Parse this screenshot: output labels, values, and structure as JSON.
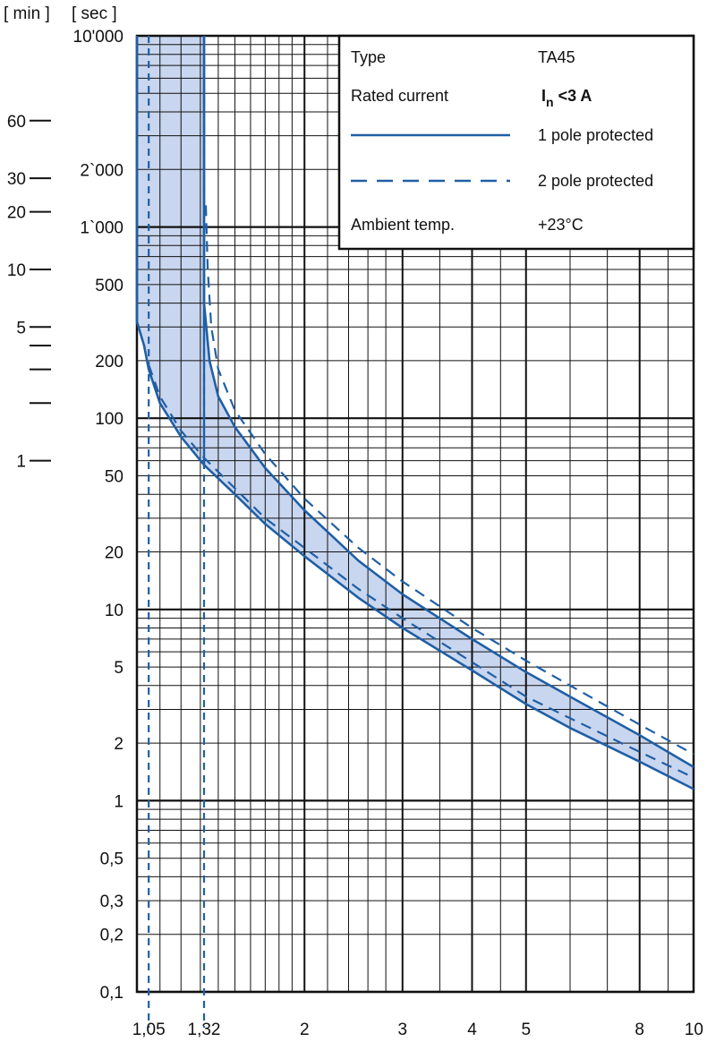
{
  "chart_data": {
    "type": "line",
    "header_labels": [
      "[ min ]",
      "[ sec ]"
    ],
    "x_axis": {
      "scale": "log",
      "range": [
        1,
        10
      ],
      "tick_labels": [
        {
          "value": 1.05,
          "label": "1,05"
        },
        {
          "value": 1.32,
          "label": "1,32"
        },
        {
          "value": 2,
          "label": "2"
        },
        {
          "value": 3,
          "label": "3"
        },
        {
          "value": 4,
          "label": "4"
        },
        {
          "value": 5,
          "label": "5"
        },
        {
          "value": 8,
          "label": "8"
        },
        {
          "value": 10,
          "label": "10"
        }
      ]
    },
    "y_axis": {
      "scale": "log",
      "unit": "sec",
      "range": [
        0.1,
        10000
      ],
      "tick_labels": [
        {
          "value": 10000,
          "label": "10'000"
        },
        {
          "value": 2000,
          "label": "2`000"
        },
        {
          "value": 1000,
          "label": "1`000"
        },
        {
          "value": 500,
          "label": "500"
        },
        {
          "value": 200,
          "label": "200"
        },
        {
          "value": 100,
          "label": "100"
        },
        {
          "value": 50,
          "label": "50"
        },
        {
          "value": 20,
          "label": "20"
        },
        {
          "value": 10,
          "label": "10"
        },
        {
          "value": 5,
          "label": "5"
        },
        {
          "value": 2,
          "label": "2"
        },
        {
          "value": 1,
          "label": "1"
        },
        {
          "value": 0.5,
          "label": "0,5"
        },
        {
          "value": 0.3,
          "label": "0,3"
        },
        {
          "value": 0.2,
          "label": "0,2"
        },
        {
          "value": 0.1,
          "label": "0,1"
        }
      ]
    },
    "minutes_axis": {
      "labeled": [
        {
          "sec": 3600,
          "label": "60"
        },
        {
          "sec": 1800,
          "label": "30"
        },
        {
          "sec": 1200,
          "label": "20"
        },
        {
          "sec": 600,
          "label": "10"
        },
        {
          "sec": 300,
          "label": "5"
        },
        {
          "sec": 60,
          "label": "1"
        }
      ],
      "unlabeled_sec": [
        240,
        180,
        120
      ]
    },
    "grid": true,
    "legend": {
      "placement": "top-right",
      "rows": [
        {
          "label": "Type",
          "value": "TA45"
        },
        {
          "label": "Rated current",
          "value_main": "I",
          "value_sub": "n",
          "value_rest": " <3 A"
        },
        {
          "style": "solid",
          "value": "1 pole protected"
        },
        {
          "style": "dashed",
          "value": "2 pole protected"
        },
        {
          "label": "Ambient temp.",
          "value": "+23°C"
        }
      ]
    },
    "colors": {
      "curve": "#1f5fa6",
      "band": "#c9d6ef",
      "grid": "#111111"
    },
    "reference_lines": [
      1.05,
      1.32
    ],
    "series": [
      {
        "style": "solid",
        "edge": "lower",
        "points": [
          [
            1.0,
            10000
          ],
          [
            1.0,
            320
          ],
          [
            1.03,
            240
          ],
          [
            1.05,
            180
          ],
          [
            1.1,
            120
          ],
          [
            1.2,
            80
          ],
          [
            1.32,
            57
          ],
          [
            1.5,
            40
          ],
          [
            1.7,
            28
          ],
          [
            2.0,
            19
          ],
          [
            2.5,
            11.5
          ],
          [
            3.0,
            8
          ],
          [
            4.0,
            4.8
          ],
          [
            5.0,
            3.2
          ],
          [
            6.0,
            2.4
          ],
          [
            8.0,
            1.6
          ],
          [
            10.0,
            1.15
          ]
        ]
      },
      {
        "style": "solid",
        "edge": "upper",
        "points": [
          [
            1.32,
            10000
          ],
          [
            1.32,
            400
          ],
          [
            1.35,
            200
          ],
          [
            1.4,
            130
          ],
          [
            1.5,
            90
          ],
          [
            1.7,
            55
          ],
          [
            2.0,
            33
          ],
          [
            2.5,
            18
          ],
          [
            3.0,
            12
          ],
          [
            4.0,
            7
          ],
          [
            5.0,
            4.7
          ],
          [
            6.0,
            3.5
          ],
          [
            8.0,
            2.2
          ],
          [
            10.0,
            1.5
          ]
        ]
      },
      {
        "style": "dashed",
        "edge": "lower",
        "points": [
          [
            1.05,
            190
          ],
          [
            1.1,
            130
          ],
          [
            1.2,
            86
          ],
          [
            1.32,
            62
          ],
          [
            1.5,
            43
          ],
          [
            1.7,
            30
          ],
          [
            2.0,
            21
          ],
          [
            2.5,
            12.8
          ],
          [
            3.0,
            9
          ],
          [
            4.0,
            5.3
          ],
          [
            5.0,
            3.5
          ],
          [
            6.0,
            2.7
          ],
          [
            8.0,
            1.8
          ],
          [
            10.0,
            1.32
          ]
        ]
      },
      {
        "style": "dashed",
        "edge": "upper",
        "points": [
          [
            1.33,
            1300
          ],
          [
            1.34,
            600
          ],
          [
            1.36,
            300
          ],
          [
            1.4,
            180
          ],
          [
            1.5,
            110
          ],
          [
            1.7,
            65
          ],
          [
            2.0,
            38
          ],
          [
            2.5,
            21
          ],
          [
            3.0,
            14
          ],
          [
            4.0,
            8
          ],
          [
            5.0,
            5.4
          ],
          [
            6.0,
            4
          ],
          [
            8.0,
            2.5
          ],
          [
            10.0,
            1.75
          ]
        ]
      }
    ]
  }
}
